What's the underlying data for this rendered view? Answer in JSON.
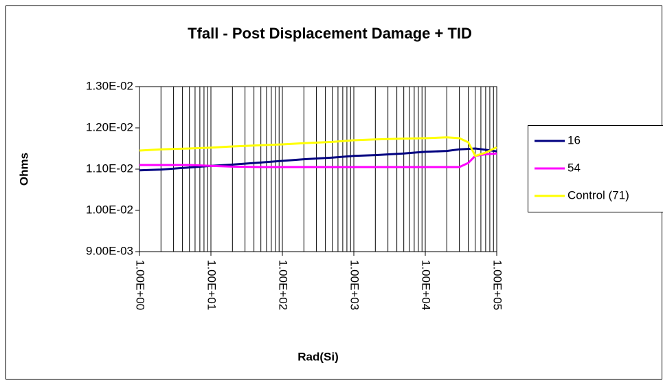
{
  "chart_data": {
    "type": "line",
    "title": "Tfall - Post Displacement Damage + TID",
    "xlabel": "Rad(Si)",
    "ylabel": "Ohms",
    "xscale": "log",
    "grid": "x",
    "minor_grid": true,
    "legend": "right",
    "x": [
      1,
      2,
      5,
      10,
      20,
      50,
      100,
      200,
      500,
      1000,
      2000,
      5000,
      10000,
      20000,
      30000,
      40000,
      50000,
      70000,
      100000
    ],
    "series": [
      {
        "name": "16",
        "color": "#000080",
        "values": [
          0.01097,
          0.01099,
          0.01104,
          0.01108,
          0.01111,
          0.01116,
          0.0112,
          0.01124,
          0.01128,
          0.01132,
          0.01134,
          0.01138,
          0.01142,
          0.01144,
          0.01148,
          0.01149,
          0.0115,
          0.01147,
          0.01143
        ]
      },
      {
        "name": "54",
        "color": "#ff00ff",
        "values": [
          0.0111,
          0.0111,
          0.0111,
          0.01108,
          0.01106,
          0.01105,
          0.01105,
          0.01105,
          0.01105,
          0.01105,
          0.01105,
          0.01105,
          0.01105,
          0.01105,
          0.01105,
          0.01115,
          0.01132,
          0.01136,
          0.01138
        ]
      },
      {
        "name": "Control (71)",
        "color": "#ffff00",
        "values": [
          0.01145,
          0.01148,
          0.0115,
          0.01152,
          0.01155,
          0.01158,
          0.0116,
          0.01163,
          0.01166,
          0.0117,
          0.01172,
          0.01174,
          0.01175,
          0.01177,
          0.01175,
          0.01165,
          0.01132,
          0.0114,
          0.01153
        ]
      }
    ],
    "xlim": [
      1,
      100000
    ],
    "xticks": [
      {
        "value": 1,
        "label": "1.00E+00"
      },
      {
        "value": 10,
        "label": "1.00E+01"
      },
      {
        "value": 100,
        "label": "1.00E+02"
      },
      {
        "value": 1000,
        "label": "1.00E+03"
      },
      {
        "value": 10000,
        "label": "1.00E+04"
      },
      {
        "value": 100000,
        "label": "1.00E+05"
      }
    ],
    "ylim": [
      0.009,
      0.013
    ],
    "yticks": [
      {
        "value": 0.009,
        "label": "9.00E-03"
      },
      {
        "value": 0.01,
        "label": "1.00E-02"
      },
      {
        "value": 0.011,
        "label": "1.10E-02"
      },
      {
        "value": 0.012,
        "label": "1.20E-02"
      },
      {
        "value": 0.013,
        "label": "1.30E-02"
      }
    ]
  }
}
